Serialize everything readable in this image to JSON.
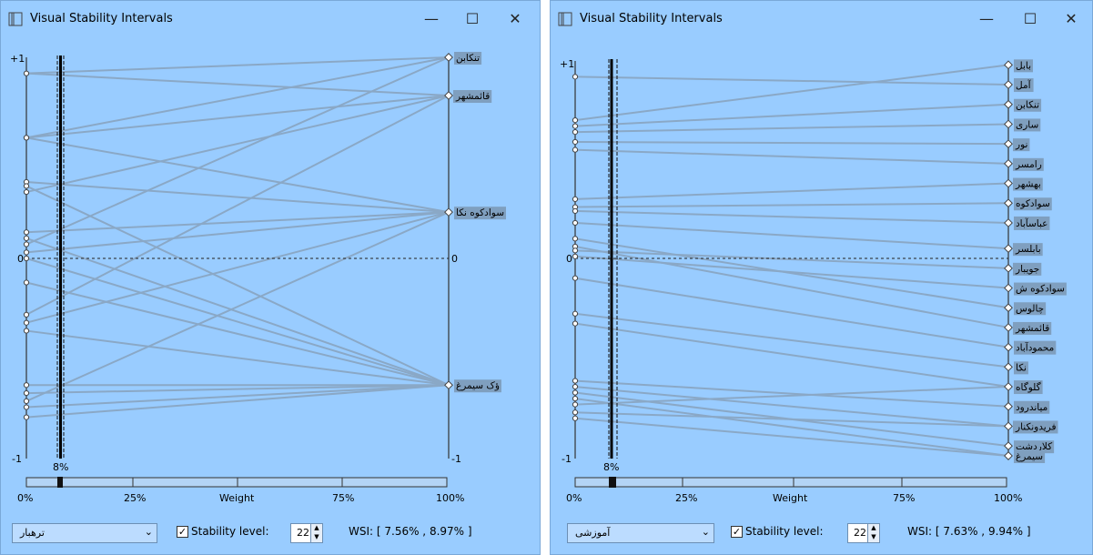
{
  "colors": {
    "window_bg": "#99ccff",
    "line": "#8aa8c6",
    "label_bg": "#7f9fbf"
  },
  "windows": [
    {
      "title": "Visual Stability Intervals",
      "controls": {
        "minimize": "—",
        "maximize": "☐",
        "close": "✕"
      },
      "y_top": "+1",
      "y_zero": "0",
      "y_bottom": "-1",
      "right_top": "+1",
      "right_zero": "0",
      "right_bottom": "-1",
      "weight_marker": "8%",
      "x_ticks": [
        "0%",
        "25%",
        "Weight",
        "75%",
        "100%"
      ],
      "slider_value_pct": 8,
      "ranking": [
        "تنکابن",
        "قائمشهر",
        "سوادکوه نکا",
        "ؤک سیمرغ"
      ],
      "right_label_levels": [
        1.0,
        0.81,
        0.23,
        -0.63
      ],
      "left_levels": [
        0.92,
        0.6,
        0.6,
        0.38,
        0.36,
        0.33,
        0.13,
        0.1,
        0.07,
        0.03,
        0.0,
        -0.12,
        -0.28,
        -0.32,
        -0.36,
        -0.63,
        -0.67,
        -0.71,
        -0.74,
        -0.79
      ],
      "edges": [
        [
          0,
          0
        ],
        [
          0,
          1
        ],
        [
          1,
          2
        ],
        [
          1,
          0
        ],
        [
          2,
          1
        ],
        [
          3,
          2
        ],
        [
          4,
          3
        ],
        [
          5,
          1
        ],
        [
          6,
          2
        ],
        [
          7,
          3
        ],
        [
          8,
          0
        ],
        [
          9,
          2
        ],
        [
          10,
          3
        ],
        [
          11,
          3
        ],
        [
          12,
          1
        ],
        [
          13,
          2
        ],
        [
          14,
          3
        ],
        [
          15,
          3
        ],
        [
          16,
          3
        ],
        [
          17,
          2
        ],
        [
          18,
          3
        ],
        [
          19,
          3
        ]
      ],
      "dropdown": "ترهبار",
      "stability_label": "Stability level:",
      "stability_checked": true,
      "stability_value": "22",
      "wsi": "WSI: [ 7.56% , 8.97% ]"
    },
    {
      "title": "Visual Stability Intervals",
      "controls": {
        "minimize": "—",
        "maximize": "☐",
        "close": "✕"
      },
      "y_top": "+1",
      "y_zero": "0",
      "y_bottom": "-1",
      "right_top": "+1",
      "right_zero": "0",
      "right_bottom": "-1",
      "weight_marker": "8%",
      "x_ticks": [
        "0%",
        "25%",
        "Weight",
        "75%",
        "100%"
      ],
      "slider_value_pct": 8,
      "ranking": [
        "بابل",
        "آمل",
        "تنکابن",
        "ساری",
        "نور",
        "رامسر",
        "بهشهر",
        "سوادکوه",
        "عباسآباد ",
        "بابلسر",
        "جویبار",
        "سوادکوه ش",
        "چالوس",
        "قائمشهر",
        "محمودآباد",
        "نکا",
        "گلوگاه",
        "میاندرود",
        "فریدونکنار",
        "کلاردشت",
        "سیمرغ"
      ],
      "right_label_levels": [
        0.98,
        0.88,
        0.78,
        0.68,
        0.58,
        0.48,
        0.38,
        0.28,
        0.18,
        0.05,
        -0.05,
        -0.15,
        -0.25,
        -0.35,
        -0.45,
        -0.55,
        -0.65,
        -0.75,
        -0.85,
        -0.95,
        -1.0
      ],
      "left_levels": [
        0.92,
        0.7,
        0.67,
        0.64,
        0.59,
        0.55,
        0.3,
        0.26,
        0.24,
        0.18,
        0.1,
        0.06,
        0.04,
        0.01,
        -0.1,
        -0.28,
        -0.33,
        -0.62,
        -0.65,
        -0.68,
        -0.71,
        -0.74,
        -0.78,
        -0.81
      ],
      "edges": [
        [
          0,
          1
        ],
        [
          1,
          0
        ],
        [
          2,
          2
        ],
        [
          3,
          3
        ],
        [
          4,
          4
        ],
        [
          5,
          5
        ],
        [
          6,
          6
        ],
        [
          7,
          7
        ],
        [
          8,
          8
        ],
        [
          9,
          9
        ],
        [
          10,
          12
        ],
        [
          11,
          13
        ],
        [
          12,
          10
        ],
        [
          13,
          11
        ],
        [
          14,
          14
        ],
        [
          15,
          15
        ],
        [
          16,
          16
        ],
        [
          17,
          17
        ],
        [
          18,
          18
        ],
        [
          19,
          19
        ],
        [
          20,
          20
        ],
        [
          21,
          16
        ],
        [
          22,
          18
        ],
        [
          23,
          20
        ]
      ],
      "dropdown": "آموزشی",
      "stability_label": "Stability level:",
      "stability_checked": true,
      "stability_value": "22",
      "wsi": "WSI: [ 7.63% , 9.94% ]"
    }
  ]
}
